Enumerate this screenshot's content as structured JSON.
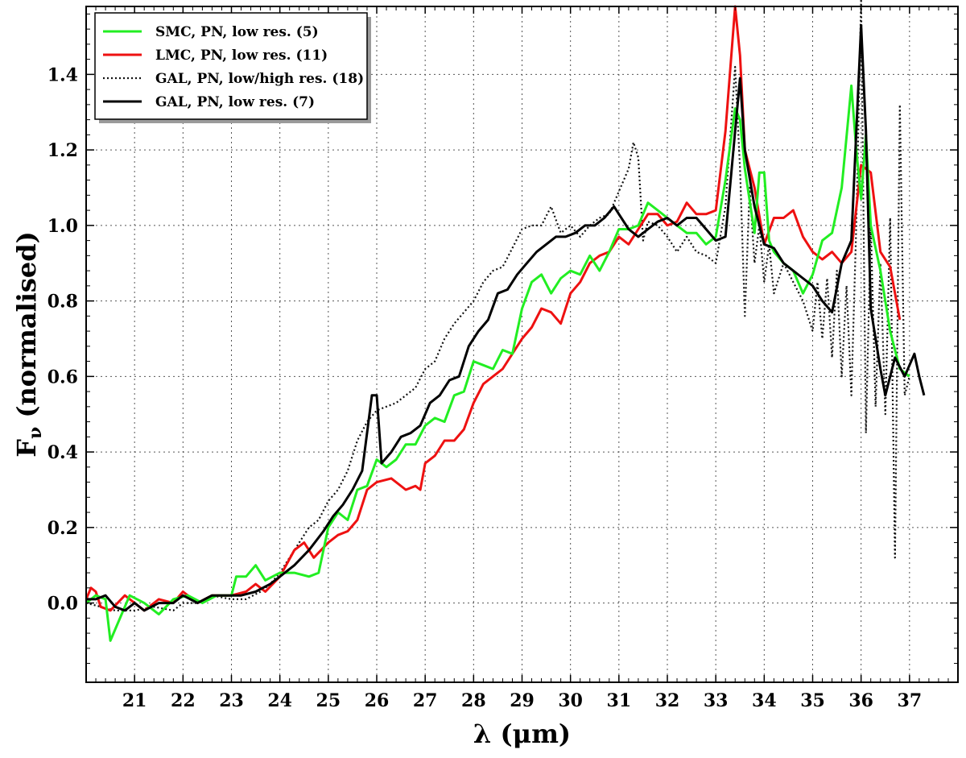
{
  "chart_data": {
    "type": "line",
    "title": "",
    "xlabel": "λ (μm)",
    "ylabel_main": "F",
    "ylabel_sub": "ν",
    "ylabel_rest": " (normalised)",
    "xlim": [
      20.0,
      38.0
    ],
    "ylim": [
      -0.21,
      1.58
    ],
    "x_ticks": [
      21,
      22,
      23,
      24,
      25,
      26,
      27,
      28,
      29,
      30,
      31,
      32,
      33,
      34,
      35,
      36,
      37
    ],
    "y_ticks": [
      0.0,
      0.2,
      0.4,
      0.6,
      0.8,
      1.0,
      1.2,
      1.4
    ],
    "x_tick_labels": [
      "21",
      "22",
      "23",
      "24",
      "25",
      "26",
      "27",
      "28",
      "29",
      "30",
      "31",
      "32",
      "33",
      "34",
      "35",
      "36",
      "37"
    ],
    "y_tick_labels": [
      "0.0",
      "0.2",
      "0.4",
      "0.6",
      "0.8",
      "1.0",
      "1.2",
      "1.4"
    ],
    "grid": true,
    "legend_position": "top-left",
    "series": [
      {
        "name": "SMC, PN, low res. (5)",
        "color": "#22ee22",
        "style": "solid",
        "x": [
          20.0,
          20.2,
          20.4,
          20.5,
          20.9,
          21.2,
          21.5,
          21.8,
          22.1,
          22.4,
          22.7,
          23.0,
          23.1,
          23.3,
          23.5,
          23.7,
          24.0,
          24.3,
          24.6,
          24.8,
          25.0,
          25.2,
          25.4,
          25.6,
          25.8,
          26.0,
          26.2,
          26.4,
          26.6,
          26.8,
          27.0,
          27.2,
          27.4,
          27.6,
          27.8,
          28.0,
          28.2,
          28.4,
          28.6,
          28.8,
          29.0,
          29.2,
          29.4,
          29.6,
          29.8,
          30.0,
          30.2,
          30.4,
          30.6,
          30.8,
          31.0,
          31.2,
          31.4,
          31.6,
          31.8,
          32.0,
          32.2,
          32.4,
          32.6,
          32.8,
          33.0,
          33.2,
          33.4,
          33.5,
          33.6,
          33.8,
          33.9,
          34.0,
          34.1,
          34.2,
          34.4,
          34.6,
          34.8,
          35.0,
          35.2,
          35.4,
          35.6,
          35.8,
          35.9,
          36.0,
          36.1,
          36.2,
          36.4,
          36.6,
          36.8,
          37.0
        ],
        "y": [
          0.0,
          0.02,
          0.01,
          -0.1,
          0.02,
          0.0,
          -0.03,
          0.01,
          0.02,
          0.0,
          0.02,
          0.02,
          0.07,
          0.07,
          0.1,
          0.06,
          0.08,
          0.08,
          0.07,
          0.08,
          0.2,
          0.24,
          0.22,
          0.3,
          0.31,
          0.38,
          0.36,
          0.38,
          0.42,
          0.42,
          0.47,
          0.49,
          0.48,
          0.55,
          0.56,
          0.64,
          0.63,
          0.62,
          0.67,
          0.66,
          0.78,
          0.85,
          0.87,
          0.82,
          0.86,
          0.88,
          0.87,
          0.92,
          0.88,
          0.93,
          0.99,
          0.99,
          1.0,
          1.06,
          1.04,
          1.02,
          1.0,
          0.98,
          0.98,
          0.95,
          0.97,
          1.12,
          1.31,
          1.28,
          1.15,
          0.98,
          1.14,
          1.14,
          0.96,
          0.93,
          0.9,
          0.88,
          0.82,
          0.87,
          0.96,
          0.98,
          1.1,
          1.37,
          1.2,
          1.07,
          1.24,
          1.0,
          0.88,
          0.72,
          0.62,
          0.6
        ]
      },
      {
        "name": "LMC, PN, low res. (11)",
        "color": "#ee1111",
        "style": "solid",
        "x": [
          20.0,
          20.1,
          20.2,
          20.3,
          20.5,
          20.8,
          21.0,
          21.2,
          21.5,
          21.8,
          22.0,
          22.3,
          22.6,
          22.8,
          23.0,
          23.3,
          23.5,
          23.7,
          24.0,
          24.3,
          24.5,
          24.7,
          25.0,
          25.2,
          25.4,
          25.6,
          25.8,
          26.0,
          26.3,
          26.6,
          26.8,
          26.9,
          27.0,
          27.2,
          27.4,
          27.6,
          27.8,
          28.0,
          28.2,
          28.4,
          28.6,
          28.8,
          29.0,
          29.2,
          29.4,
          29.6,
          29.8,
          30.0,
          30.2,
          30.4,
          30.6,
          30.8,
          31.0,
          31.2,
          31.4,
          31.6,
          31.8,
          32.0,
          32.2,
          32.4,
          32.6,
          32.8,
          33.0,
          33.2,
          33.4,
          33.5,
          33.6,
          33.8,
          34.0,
          34.2,
          34.4,
          34.6,
          34.8,
          35.0,
          35.2,
          35.4,
          35.6,
          35.8,
          36.0,
          36.1,
          36.2,
          36.4,
          36.6,
          36.8
        ],
        "y": [
          0.01,
          0.04,
          0.03,
          -0.01,
          -0.02,
          0.02,
          0.0,
          -0.02,
          0.01,
          0.0,
          0.03,
          0.0,
          0.02,
          0.02,
          0.02,
          0.03,
          0.05,
          0.03,
          0.07,
          0.14,
          0.16,
          0.12,
          0.16,
          0.18,
          0.19,
          0.22,
          0.3,
          0.32,
          0.33,
          0.3,
          0.31,
          0.3,
          0.37,
          0.39,
          0.43,
          0.43,
          0.46,
          0.53,
          0.58,
          0.6,
          0.62,
          0.66,
          0.7,
          0.73,
          0.78,
          0.77,
          0.74,
          0.82,
          0.85,
          0.9,
          0.92,
          0.93,
          0.97,
          0.95,
          0.99,
          1.03,
          1.03,
          1.0,
          1.01,
          1.06,
          1.03,
          1.03,
          1.04,
          1.25,
          1.58,
          1.45,
          1.2,
          1.1,
          0.95,
          1.02,
          1.02,
          1.04,
          0.97,
          0.93,
          0.91,
          0.93,
          0.9,
          0.93,
          1.16,
          1.15,
          1.14,
          0.93,
          0.89,
          0.75
        ]
      },
      {
        "name": "GAL, PN, low/high res. (18)",
        "color": "#111111",
        "style": "dotted",
        "x": [
          20.0,
          20.3,
          20.6,
          21.0,
          21.4,
          21.8,
          22.0,
          22.3,
          22.6,
          23.0,
          23.3,
          23.6,
          23.8,
          24.0,
          24.2,
          24.4,
          24.6,
          24.8,
          25.0,
          25.2,
          25.4,
          25.6,
          25.8,
          26.0,
          26.2,
          26.4,
          26.6,
          26.8,
          27.0,
          27.2,
          27.4,
          27.6,
          27.8,
          28.0,
          28.2,
          28.4,
          28.6,
          28.8,
          29.0,
          29.2,
          29.4,
          29.6,
          29.8,
          30.0,
          30.2,
          30.4,
          30.6,
          30.8,
          31.0,
          31.2,
          31.3,
          31.4,
          31.5,
          31.6,
          31.8,
          32.0,
          32.2,
          32.4,
          32.6,
          32.8,
          33.0,
          33.2,
          33.4,
          33.5,
          33.6,
          33.7,
          33.8,
          33.9,
          34.0,
          34.1,
          34.2,
          34.4,
          34.6,
          34.8,
          35.0,
          35.1,
          35.2,
          35.3,
          35.4,
          35.5,
          35.6,
          35.7,
          35.8,
          35.9,
          36.0,
          36.1,
          36.2,
          36.3,
          36.4,
          36.5,
          36.6,
          36.7,
          36.8,
          36.9,
          37.0
        ],
        "y": [
          0.0,
          -0.01,
          -0.02,
          -0.02,
          -0.01,
          -0.02,
          0.0,
          0.0,
          0.02,
          0.01,
          0.01,
          0.03,
          0.05,
          0.08,
          0.12,
          0.16,
          0.2,
          0.22,
          0.27,
          0.3,
          0.35,
          0.43,
          0.48,
          0.51,
          0.52,
          0.53,
          0.55,
          0.57,
          0.62,
          0.64,
          0.7,
          0.74,
          0.77,
          0.8,
          0.85,
          0.88,
          0.89,
          0.94,
          0.99,
          1.0,
          1.0,
          1.05,
          0.98,
          1.0,
          0.97,
          1.0,
          1.02,
          1.03,
          1.09,
          1.15,
          1.22,
          1.18,
          0.96,
          1.01,
          1.0,
          0.97,
          0.93,
          0.97,
          0.93,
          0.92,
          0.9,
          1.05,
          1.42,
          1.15,
          0.76,
          1.1,
          0.9,
          1.0,
          0.85,
          0.95,
          0.82,
          0.9,
          0.85,
          0.8,
          0.72,
          0.85,
          0.7,
          0.86,
          0.65,
          0.88,
          0.6,
          0.84,
          0.55,
          1.0,
          1.6,
          0.45,
          1.0,
          0.52,
          0.9,
          0.5,
          1.02,
          0.12,
          1.32,
          0.55,
          0.6
        ]
      },
      {
        "name": "GAL, PN, low res. (7)",
        "color": "#000000",
        "style": "solid",
        "x": [
          20.0,
          20.2,
          20.4,
          20.6,
          20.8,
          21.0,
          21.2,
          21.5,
          21.8,
          22.0,
          22.3,
          22.6,
          22.9,
          23.2,
          23.5,
          23.8,
          24.0,
          24.3,
          24.6,
          24.9,
          25.1,
          25.3,
          25.5,
          25.7,
          25.9,
          26.0,
          26.1,
          26.3,
          26.5,
          26.7,
          26.9,
          27.1,
          27.3,
          27.5,
          27.7,
          27.9,
          28.1,
          28.3,
          28.5,
          28.7,
          28.9,
          29.1,
          29.3,
          29.5,
          29.7,
          29.9,
          30.1,
          30.3,
          30.5,
          30.7,
          30.9,
          31.0,
          31.2,
          31.4,
          31.6,
          31.8,
          32.0,
          32.2,
          32.4,
          32.6,
          32.8,
          33.0,
          33.2,
          33.4,
          33.5,
          33.6,
          33.8,
          34.0,
          34.2,
          34.4,
          34.6,
          34.8,
          35.0,
          35.2,
          35.4,
          35.6,
          35.8,
          36.0,
          36.1,
          36.2,
          36.4,
          36.5,
          36.7,
          36.9,
          37.1,
          37.2,
          37.3
        ],
        "y": [
          0.01,
          0.01,
          0.02,
          -0.01,
          -0.02,
          0.0,
          -0.02,
          0.0,
          0.0,
          0.02,
          0.0,
          0.02,
          0.02,
          0.02,
          0.03,
          0.05,
          0.07,
          0.1,
          0.14,
          0.19,
          0.23,
          0.26,
          0.3,
          0.35,
          0.55,
          0.55,
          0.37,
          0.4,
          0.44,
          0.45,
          0.47,
          0.53,
          0.55,
          0.59,
          0.6,
          0.68,
          0.72,
          0.75,
          0.82,
          0.83,
          0.87,
          0.9,
          0.93,
          0.95,
          0.97,
          0.97,
          0.98,
          1.0,
          1.0,
          1.02,
          1.05,
          1.03,
          0.99,
          0.97,
          0.99,
          1.01,
          1.02,
          1.0,
          1.02,
          1.02,
          0.99,
          0.96,
          0.97,
          1.25,
          1.39,
          1.2,
          1.05,
          0.95,
          0.94,
          0.9,
          0.88,
          0.86,
          0.84,
          0.8,
          0.77,
          0.9,
          0.96,
          1.53,
          1.25,
          0.78,
          0.62,
          0.55,
          0.65,
          0.6,
          0.66,
          0.6,
          0.55
        ]
      }
    ]
  }
}
